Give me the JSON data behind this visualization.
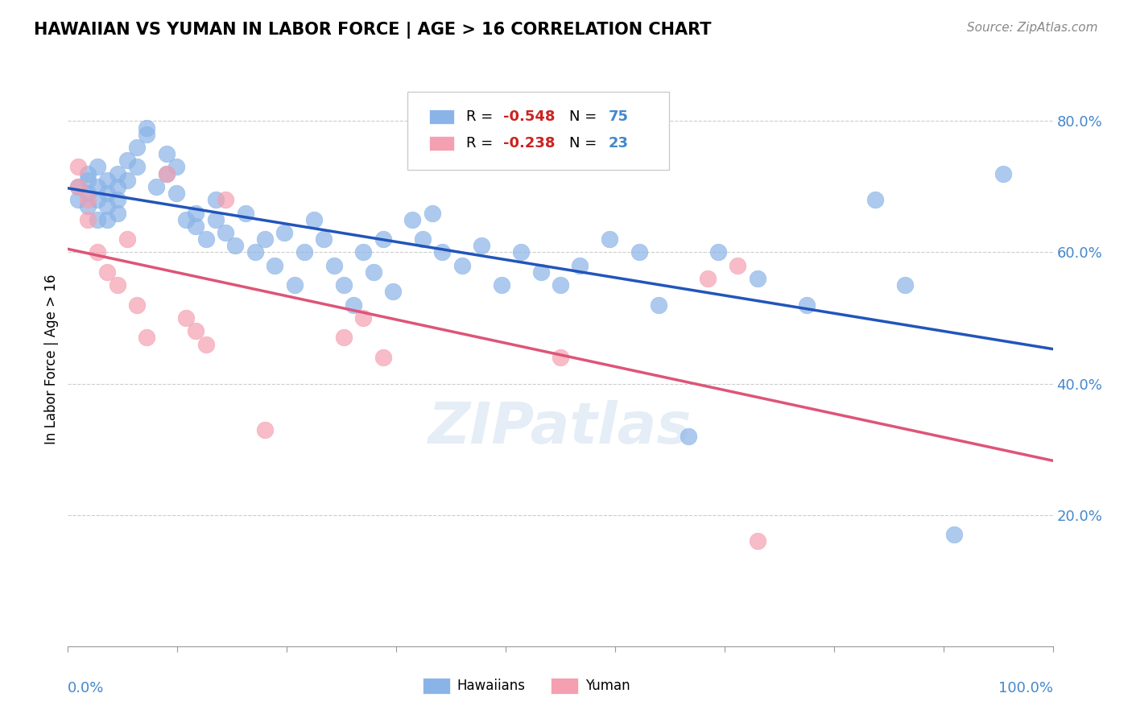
{
  "title": "HAWAIIAN VS YUMAN IN LABOR FORCE | AGE > 16 CORRELATION CHART",
  "source": "Source: ZipAtlas.com",
  "ylabel": "In Labor Force | Age > 16",
  "xlim": [
    0.0,
    1.0
  ],
  "ylim": [
    0.0,
    0.875
  ],
  "yticks": [
    0.2,
    0.4,
    0.6,
    0.8
  ],
  "ytick_labels": [
    "20.0%",
    "40.0%",
    "60.0%",
    "80.0%"
  ],
  "hawaiians_R": "-0.548",
  "hawaiians_N": "75",
  "yuman_R": "-0.238",
  "yuman_N": "23",
  "blue_color": "#8ab4e8",
  "pink_color": "#f4a0b0",
  "trendline_blue": "#2255bb",
  "trendline_pink": "#dd5577",
  "watermark": "ZIPatlas",
  "hawaiians_x": [
    0.01,
    0.01,
    0.02,
    0.02,
    0.02,
    0.02,
    0.03,
    0.03,
    0.03,
    0.03,
    0.04,
    0.04,
    0.04,
    0.04,
    0.05,
    0.05,
    0.05,
    0.05,
    0.06,
    0.06,
    0.07,
    0.07,
    0.08,
    0.08,
    0.09,
    0.1,
    0.1,
    0.11,
    0.11,
    0.12,
    0.13,
    0.13,
    0.14,
    0.15,
    0.15,
    0.16,
    0.17,
    0.18,
    0.19,
    0.2,
    0.21,
    0.22,
    0.23,
    0.24,
    0.25,
    0.26,
    0.27,
    0.28,
    0.29,
    0.3,
    0.31,
    0.32,
    0.33,
    0.35,
    0.36,
    0.37,
    0.38,
    0.4,
    0.42,
    0.44,
    0.46,
    0.48,
    0.5,
    0.52,
    0.55,
    0.58,
    0.6,
    0.63,
    0.66,
    0.7,
    0.75,
    0.82,
    0.85,
    0.9,
    0.95
  ],
  "hawaiians_y": [
    0.7,
    0.68,
    0.72,
    0.69,
    0.71,
    0.67,
    0.73,
    0.7,
    0.68,
    0.65,
    0.71,
    0.69,
    0.67,
    0.65,
    0.72,
    0.7,
    0.68,
    0.66,
    0.74,
    0.71,
    0.76,
    0.73,
    0.78,
    0.79,
    0.7,
    0.75,
    0.72,
    0.73,
    0.69,
    0.65,
    0.64,
    0.66,
    0.62,
    0.68,
    0.65,
    0.63,
    0.61,
    0.66,
    0.6,
    0.62,
    0.58,
    0.63,
    0.55,
    0.6,
    0.65,
    0.62,
    0.58,
    0.55,
    0.52,
    0.6,
    0.57,
    0.62,
    0.54,
    0.65,
    0.62,
    0.66,
    0.6,
    0.58,
    0.61,
    0.55,
    0.6,
    0.57,
    0.55,
    0.58,
    0.62,
    0.6,
    0.52,
    0.32,
    0.6,
    0.56,
    0.52,
    0.68,
    0.55,
    0.17,
    0.72
  ],
  "yuman_x": [
    0.01,
    0.01,
    0.02,
    0.02,
    0.03,
    0.04,
    0.05,
    0.06,
    0.07,
    0.08,
    0.1,
    0.12,
    0.13,
    0.14,
    0.16,
    0.2,
    0.28,
    0.3,
    0.32,
    0.5,
    0.65,
    0.68,
    0.7
  ],
  "yuman_y": [
    0.7,
    0.73,
    0.68,
    0.65,
    0.6,
    0.57,
    0.55,
    0.62,
    0.52,
    0.47,
    0.72,
    0.5,
    0.48,
    0.46,
    0.68,
    0.33,
    0.47,
    0.5,
    0.44,
    0.44,
    0.56,
    0.58,
    0.16
  ]
}
